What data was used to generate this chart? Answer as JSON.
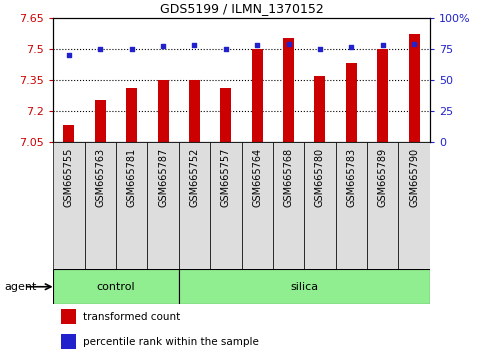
{
  "title": "GDS5199 / ILMN_1370152",
  "samples": [
    "GSM665755",
    "GSM665763",
    "GSM665781",
    "GSM665787",
    "GSM665752",
    "GSM665757",
    "GSM665764",
    "GSM665768",
    "GSM665780",
    "GSM665783",
    "GSM665789",
    "GSM665790"
  ],
  "transformed_counts": [
    7.13,
    7.25,
    7.31,
    7.35,
    7.35,
    7.31,
    7.5,
    7.55,
    7.37,
    7.43,
    7.5,
    7.57
  ],
  "percentile_ranks": [
    70,
    75,
    75,
    77,
    78,
    75,
    78,
    79,
    75,
    76,
    78,
    79
  ],
  "groups": [
    "control",
    "control",
    "control",
    "control",
    "silica",
    "silica",
    "silica",
    "silica",
    "silica",
    "silica",
    "silica",
    "silica"
  ],
  "bar_color": "#CC0000",
  "dot_color": "#2222CC",
  "ylim_left": [
    7.05,
    7.65
  ],
  "ylim_right": [
    0,
    100
  ],
  "yticks_left": [
    7.05,
    7.2,
    7.35,
    7.5,
    7.65
  ],
  "yticks_right": [
    0,
    25,
    50,
    75,
    100
  ],
  "hlines": [
    7.2,
    7.35,
    7.5
  ],
  "legend_items": [
    "transformed count",
    "percentile rank within the sample"
  ],
  "bar_width": 0.35,
  "baseline": 7.05,
  "n_control": 4,
  "green_color": "#90EE90",
  "fig_width": 4.83,
  "fig_height": 3.54
}
